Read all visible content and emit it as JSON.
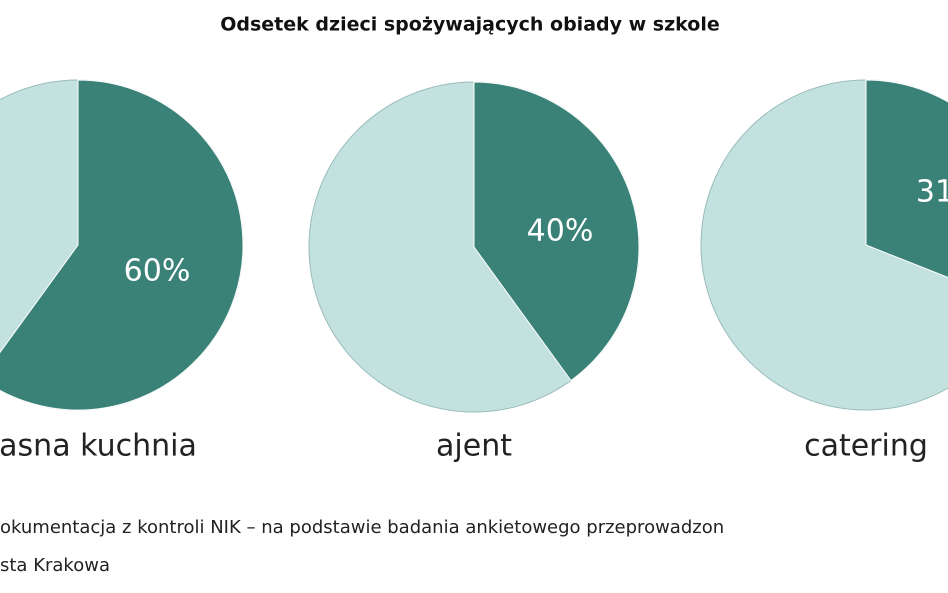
{
  "chart_data": {
    "type": "pie",
    "title": "Odsetek dzieci spożywających obiady  w szkole",
    "categories": [
      "asna kuchnia",
      "ajent",
      "catering"
    ],
    "values": [
      60,
      40,
      31
    ],
    "value_labels": [
      "60%",
      "40%",
      "31"
    ],
    "color": "#3a8278",
    "base_color": "#c3e2df",
    "notes": [
      "okumentacja z kontroli NIK – na podstawie badania ankietowego przeprowadzon",
      "sta Krakowa"
    ]
  }
}
